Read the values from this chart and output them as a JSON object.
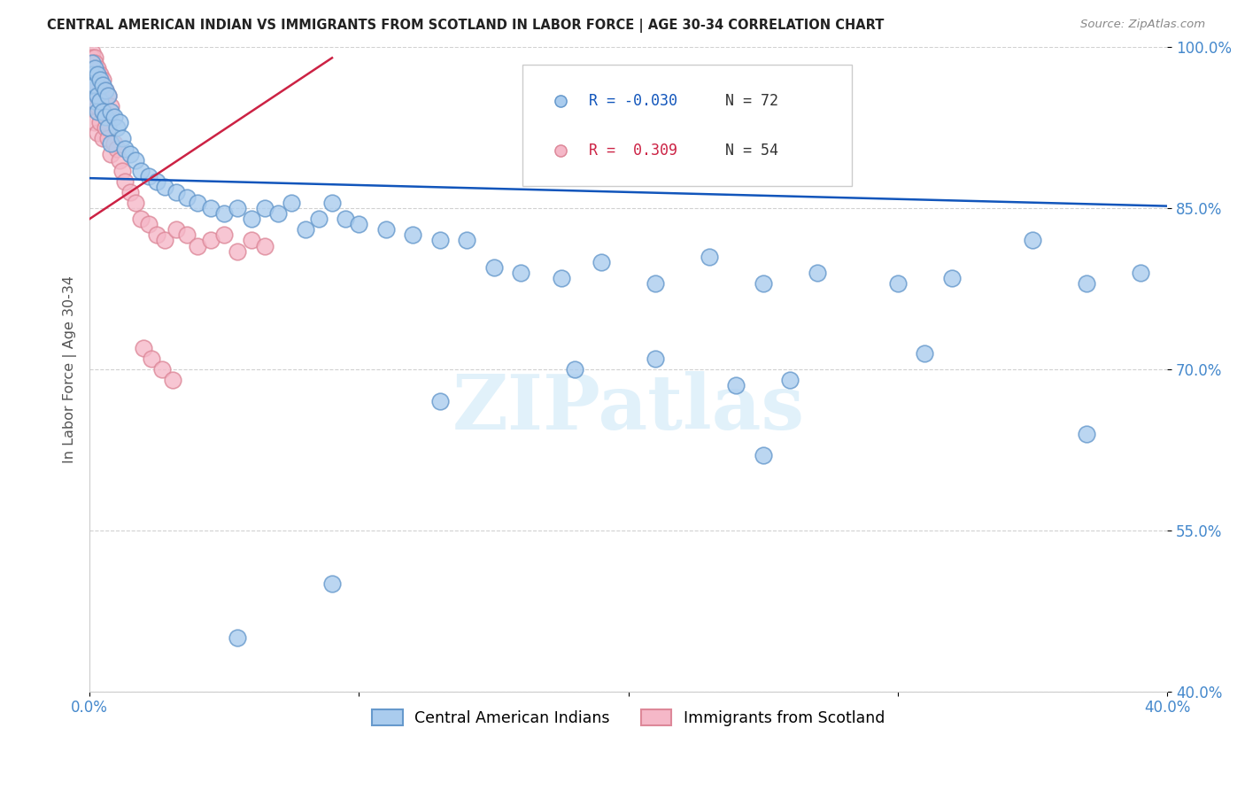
{
  "title": "CENTRAL AMERICAN INDIAN VS IMMIGRANTS FROM SCOTLAND IN LABOR FORCE | AGE 30-34 CORRELATION CHART",
  "source": "Source: ZipAtlas.com",
  "ylabel": "In Labor Force | Age 30-34",
  "xlim": [
    0.0,
    0.4
  ],
  "ylim": [
    0.4,
    1.0
  ],
  "xticks": [
    0.0,
    0.1,
    0.2,
    0.3,
    0.4
  ],
  "xtick_labels": [
    "0.0%",
    "",
    "",
    "",
    "40.0%"
  ],
  "yticks": [
    0.4,
    0.55,
    0.7,
    0.85,
    1.0
  ],
  "ytick_labels": [
    "40.0%",
    "55.0%",
    "70.0%",
    "85.0%",
    "100.0%"
  ],
  "blue_R": -0.03,
  "blue_N": 72,
  "pink_R": 0.309,
  "pink_N": 54,
  "blue_color": "#aaccee",
  "blue_edge": "#6699cc",
  "pink_color": "#f5b8c8",
  "pink_edge": "#dd8899",
  "blue_line_color": "#1155bb",
  "pink_line_color": "#cc2244",
  "background_color": "#ffffff",
  "grid_color": "#cccccc",
  "watermark": "ZIPatlas",
  "blue_x": [
    0.001,
    0.001,
    0.001,
    0.002,
    0.002,
    0.002,
    0.003,
    0.003,
    0.003,
    0.004,
    0.004,
    0.005,
    0.005,
    0.006,
    0.006,
    0.007,
    0.007,
    0.008,
    0.008,
    0.009,
    0.01,
    0.011,
    0.012,
    0.013,
    0.015,
    0.017,
    0.019,
    0.022,
    0.025,
    0.028,
    0.032,
    0.036,
    0.04,
    0.045,
    0.05,
    0.055,
    0.06,
    0.065,
    0.07,
    0.075,
    0.08,
    0.085,
    0.09,
    0.095,
    0.1,
    0.11,
    0.12,
    0.13,
    0.14,
    0.15,
    0.16,
    0.175,
    0.19,
    0.21,
    0.23,
    0.25,
    0.27,
    0.3,
    0.32,
    0.35,
    0.37,
    0.39,
    0.21,
    0.24,
    0.26,
    0.31,
    0.37,
    0.25,
    0.18,
    0.13,
    0.09,
    0.055
  ],
  "blue_y": [
    0.985,
    0.975,
    0.965,
    0.98,
    0.965,
    0.95,
    0.975,
    0.955,
    0.94,
    0.97,
    0.95,
    0.965,
    0.94,
    0.96,
    0.935,
    0.955,
    0.925,
    0.94,
    0.91,
    0.935,
    0.925,
    0.93,
    0.915,
    0.905,
    0.9,
    0.895,
    0.885,
    0.88,
    0.875,
    0.87,
    0.865,
    0.86,
    0.855,
    0.85,
    0.845,
    0.85,
    0.84,
    0.85,
    0.845,
    0.855,
    0.83,
    0.84,
    0.855,
    0.84,
    0.835,
    0.83,
    0.825,
    0.82,
    0.82,
    0.795,
    0.79,
    0.785,
    0.8,
    0.78,
    0.805,
    0.78,
    0.79,
    0.78,
    0.785,
    0.82,
    0.78,
    0.79,
    0.71,
    0.685,
    0.69,
    0.715,
    0.64,
    0.62,
    0.7,
    0.67,
    0.5,
    0.45
  ],
  "pink_x": [
    0.001,
    0.001,
    0.001,
    0.001,
    0.001,
    0.001,
    0.001,
    0.001,
    0.002,
    0.002,
    0.002,
    0.002,
    0.002,
    0.002,
    0.002,
    0.003,
    0.003,
    0.003,
    0.003,
    0.004,
    0.004,
    0.004,
    0.005,
    0.005,
    0.005,
    0.006,
    0.006,
    0.007,
    0.007,
    0.008,
    0.008,
    0.009,
    0.01,
    0.011,
    0.012,
    0.013,
    0.015,
    0.017,
    0.019,
    0.022,
    0.025,
    0.028,
    0.032,
    0.036,
    0.04,
    0.045,
    0.05,
    0.055,
    0.06,
    0.065,
    0.02,
    0.023,
    0.027,
    0.031
  ],
  "pink_y": [
    0.995,
    0.99,
    0.985,
    0.98,
    0.975,
    0.97,
    0.965,
    0.96,
    0.99,
    0.985,
    0.98,
    0.97,
    0.96,
    0.945,
    0.93,
    0.98,
    0.965,
    0.945,
    0.92,
    0.975,
    0.955,
    0.93,
    0.97,
    0.945,
    0.915,
    0.96,
    0.925,
    0.955,
    0.915,
    0.945,
    0.9,
    0.91,
    0.905,
    0.895,
    0.885,
    0.875,
    0.865,
    0.855,
    0.84,
    0.835,
    0.825,
    0.82,
    0.83,
    0.825,
    0.815,
    0.82,
    0.825,
    0.81,
    0.82,
    0.815,
    0.72,
    0.71,
    0.7,
    0.69
  ]
}
